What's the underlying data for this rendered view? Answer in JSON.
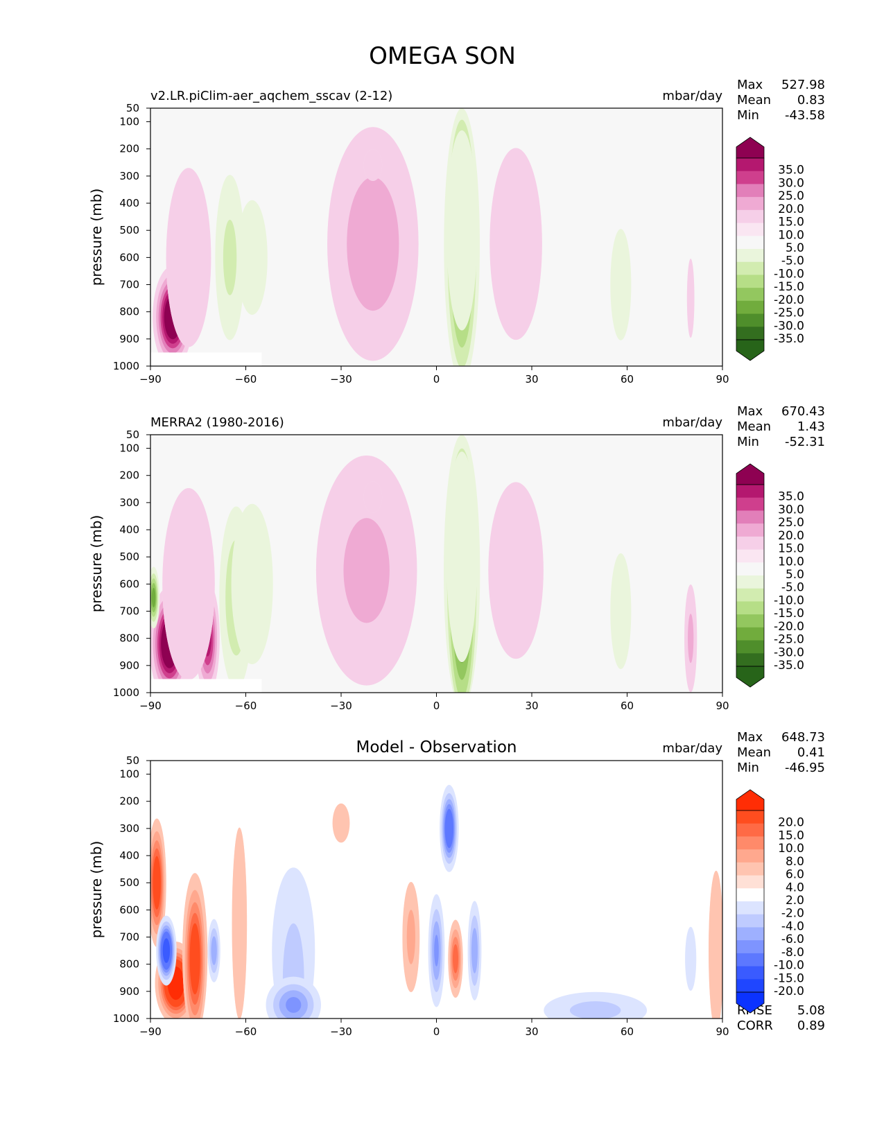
{
  "figure": {
    "title": "OMEGA SON"
  },
  "chart_data": [
    {
      "type": "heatmap",
      "title": "",
      "subtitle_left": "v2.LR.piClim-aer_aqchem_sscav (2-12)",
      "units": "mbar/day",
      "ylabel": "pressure (mb)",
      "xlabel": "",
      "xlim": [
        -90,
        90
      ],
      "ylim": [
        1000,
        50
      ],
      "xticks": [
        -90,
        -60,
        -30,
        0,
        30,
        60,
        90
      ],
      "yticks": [
        50,
        100,
        200,
        300,
        400,
        500,
        600,
        700,
        800,
        900,
        1000
      ],
      "stats": [
        {
          "label": "Max",
          "value": "527.98"
        },
        {
          "label": "Mean",
          "value": "0.83"
        },
        {
          "label": "Min",
          "value": "-43.58"
        }
      ],
      "colorbar": {
        "labels": [
          "35.0",
          "30.0",
          "25.0",
          "20.0",
          "15.0",
          "10.0",
          "5.0",
          "-5.0",
          "-10.0",
          "-15.0",
          "-20.0",
          "-25.0",
          "-30.0",
          "-35.0"
        ],
        "colors": [
          "#8e0152",
          "#b4186f",
          "#cf3f8d",
          "#e27fb9",
          "#efaad3",
          "#f6cfe8",
          "#fae6f2",
          "#f7f7f7",
          "#eaf5dc",
          "#d2ecb0",
          "#b6de87",
          "#93c75f",
          "#71ac3d",
          "#4f8e2b",
          "#336e1f",
          "#276419"
        ]
      },
      "features": [
        {
          "kind": "pos",
          "x": -83,
          "p": 820,
          "sx": 3,
          "sp": 90,
          "a": 45
        },
        {
          "kind": "pos",
          "x": -78,
          "p": 600,
          "sx": 6,
          "sp": 280,
          "a": 10
        },
        {
          "kind": "neg",
          "x": -65,
          "p": 600,
          "sx": 3.5,
          "sp": 230,
          "a": -12
        },
        {
          "kind": "neg",
          "x": -58,
          "p": 600,
          "sx": 8,
          "sp": 350,
          "a": -6
        },
        {
          "kind": "pos",
          "x": -20,
          "p": 550,
          "sx": 10,
          "sp": 300,
          "a": 14
        },
        {
          "kind": "pos",
          "x": -20,
          "p": 260,
          "sx": 3,
          "sp": 60,
          "a": 8
        },
        {
          "kind": "neg",
          "x": 8,
          "p": 550,
          "sx": 2.8,
          "sp": 280,
          "a": -38
        },
        {
          "kind": "neg",
          "x": 8,
          "p": 500,
          "sx": 5,
          "sp": 380,
          "a": -8
        },
        {
          "kind": "pos",
          "x": 25,
          "p": 550,
          "sx": 7,
          "sp": 300,
          "a": 10
        },
        {
          "kind": "neg",
          "x": 58,
          "p": 700,
          "sx": 4,
          "sp": 250,
          "a": -7
        },
        {
          "kind": "pos",
          "x": 80,
          "p": 750,
          "sx": 1.2,
          "sp": 150,
          "a": 8
        }
      ]
    },
    {
      "type": "heatmap",
      "title": "",
      "subtitle_left": "MERRA2 (1980-2016)",
      "units": "mbar/day",
      "ylabel": "pressure (mb)",
      "xlabel": "",
      "xlim": [
        -90,
        90
      ],
      "ylim": [
        1000,
        50
      ],
      "xticks": [
        -90,
        -60,
        -30,
        0,
        30,
        60,
        90
      ],
      "yticks": [
        50,
        100,
        200,
        300,
        400,
        500,
        600,
        700,
        800,
        900,
        1000
      ],
      "stats": [
        {
          "label": "Max",
          "value": "670.43"
        },
        {
          "label": "Mean",
          "value": "1.43"
        },
        {
          "label": "Min",
          "value": "-52.31"
        }
      ],
      "colorbar": {
        "labels": [
          "35.0",
          "30.0",
          "25.0",
          "20.0",
          "15.0",
          "10.0",
          "5.0",
          "-5.0",
          "-10.0",
          "-15.0",
          "-20.0",
          "-25.0",
          "-30.0",
          "-35.0"
        ],
        "colors": [
          "#8e0152",
          "#b4186f",
          "#cf3f8d",
          "#e27fb9",
          "#efaad3",
          "#f6cfe8",
          "#fae6f2",
          "#f7f7f7",
          "#eaf5dc",
          "#d2ecb0",
          "#b6de87",
          "#93c75f",
          "#71ac3d",
          "#4f8e2b",
          "#336e1f",
          "#276419"
        ]
      },
      "features": [
        {
          "kind": "pos",
          "x": -84,
          "p": 820,
          "sx": 3,
          "sp": 100,
          "a": 45
        },
        {
          "kind": "pos",
          "x": -72,
          "p": 800,
          "sx": 2,
          "sp": 110,
          "a": 30
        },
        {
          "kind": "pos",
          "x": -78,
          "p": 600,
          "sx": 7,
          "sp": 300,
          "a": 10
        },
        {
          "kind": "neg",
          "x": -89,
          "p": 650,
          "sx": 1,
          "sp": 60,
          "a": -30
        },
        {
          "kind": "neg",
          "x": -63,
          "p": 650,
          "sx": 3.5,
          "sp": 220,
          "a": -16
        },
        {
          "kind": "neg",
          "x": -58,
          "p": 600,
          "sx": 8,
          "sp": 360,
          "a": -7
        },
        {
          "kind": "pos",
          "x": -22,
          "p": 550,
          "sx": 12,
          "sp": 320,
          "a": 12
        },
        {
          "kind": "pos",
          "x": -20,
          "p": 280,
          "sx": 3,
          "sp": 60,
          "a": 8
        },
        {
          "kind": "neg",
          "x": 8,
          "p": 600,
          "sx": 2.8,
          "sp": 300,
          "a": -40
        },
        {
          "kind": "neg",
          "x": 8,
          "p": 500,
          "sx": 5,
          "sp": 400,
          "a": -8
        },
        {
          "kind": "pos",
          "x": 25,
          "p": 550,
          "sx": 8,
          "sp": 300,
          "a": 9
        },
        {
          "kind": "neg",
          "x": 58,
          "p": 700,
          "sx": 4,
          "sp": 260,
          "a": -7
        },
        {
          "kind": "pos",
          "x": 80,
          "p": 800,
          "sx": 1.5,
          "sp": 150,
          "a": 12
        }
      ]
    },
    {
      "type": "heatmap",
      "title": "Model - Observation",
      "subtitle_left": "",
      "units": "mbar/day",
      "ylabel": "pressure (mb)",
      "xlabel": "",
      "xlim": [
        -90,
        90
      ],
      "ylim": [
        1000,
        50
      ],
      "xticks": [
        -90,
        -60,
        -30,
        0,
        30,
        60,
        90
      ],
      "yticks": [
        50,
        100,
        200,
        300,
        400,
        500,
        600,
        700,
        800,
        900,
        1000
      ],
      "stats": [
        {
          "label": "Max",
          "value": "648.73"
        },
        {
          "label": "Mean",
          "value": "0.41"
        },
        {
          "label": "Min",
          "value": "-46.95"
        }
      ],
      "stats_bottom": [
        {
          "label": "RMSE",
          "value": "5.08"
        },
        {
          "label": "CORR",
          "value": "0.89"
        }
      ],
      "colorbar": {
        "labels": [
          "20.0",
          "15.0",
          "10.0",
          "8.0",
          "6.0",
          "4.0",
          "2.0",
          "-2.0",
          "-4.0",
          "-6.0",
          "-8.0",
          "-10.0",
          "-15.0",
          "-20.0"
        ],
        "colors": [
          "#ff2d05",
          "#ff4d1f",
          "#ff6a45",
          "#ff8a6a",
          "#ffa88e",
          "#ffc4b0",
          "#ffe0d6",
          "#ffffff",
          "#dce4ff",
          "#bfcbff",
          "#9eb0ff",
          "#7e94ff",
          "#5d78ff",
          "#3a5bff",
          "#1f46ff",
          "#0b33ff"
        ]
      },
      "features": [
        {
          "kind": "pos",
          "x": -82,
          "p": 870,
          "sx": 3,
          "sp": 70,
          "a": 22
        },
        {
          "kind": "pos",
          "x": -88,
          "p": 500,
          "sx": 1.5,
          "sp": 120,
          "a": 14
        },
        {
          "kind": "pos",
          "x": -76,
          "p": 780,
          "sx": 2,
          "sp": 160,
          "a": 14
        },
        {
          "kind": "neg",
          "x": -85,
          "p": 750,
          "sx": 1.5,
          "sp": 60,
          "a": -20
        },
        {
          "kind": "neg",
          "x": -70,
          "p": 750,
          "sx": 1.2,
          "sp": 70,
          "a": -8
        },
        {
          "kind": "pos",
          "x": -62,
          "p": 650,
          "sx": 2,
          "sp": 300,
          "a": 4
        },
        {
          "kind": "neg",
          "x": -45,
          "p": 850,
          "sx": 5,
          "sp": 300,
          "a": -5
        },
        {
          "kind": "neg",
          "x": -45,
          "p": 950,
          "sx": 5,
          "sp": 60,
          "a": -9
        },
        {
          "kind": "pos",
          "x": -30,
          "p": 280,
          "sx": 3,
          "sp": 80,
          "a": 3
        },
        {
          "kind": "pos",
          "x": -8,
          "p": 700,
          "sx": 2,
          "sp": 150,
          "a": 5
        },
        {
          "kind": "neg",
          "x": 4,
          "p": 300,
          "sx": 1.5,
          "sp": 80,
          "a": -15
        },
        {
          "kind": "neg",
          "x": 0,
          "p": 750,
          "sx": 1.5,
          "sp": 120,
          "a": -9
        },
        {
          "kind": "pos",
          "x": 6,
          "p": 780,
          "sx": 1.3,
          "sp": 80,
          "a": 10
        },
        {
          "kind": "neg",
          "x": 12,
          "p": 750,
          "sx": 1.3,
          "sp": 110,
          "a": -8
        },
        {
          "kind": "neg",
          "x": 50,
          "p": 970,
          "sx": 12,
          "sp": 50,
          "a": -5
        },
        {
          "kind": "pos",
          "x": 88,
          "p": 750,
          "sx": 2,
          "sp": 250,
          "a": 4
        },
        {
          "kind": "neg",
          "x": 80,
          "p": 780,
          "sx": 1.5,
          "sp": 100,
          "a": -4
        }
      ]
    }
  ]
}
